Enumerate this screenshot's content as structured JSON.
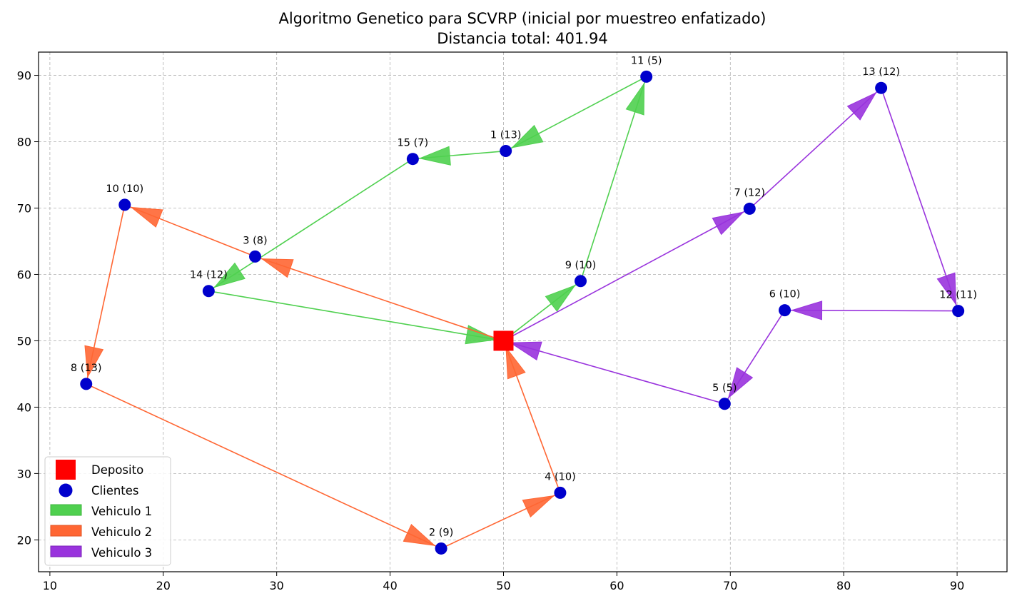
{
  "chart_data": {
    "type": "scatter",
    "title": "Algoritmo Genetico para SCVRP (inicial por muestreo enfatizado)",
    "subtitle": "Distancia total: 401.94",
    "xlabel": "",
    "ylabel": "",
    "xlim": [
      9,
      94.4
    ],
    "ylim": [
      15.2,
      93.5
    ],
    "xticks": [
      10,
      20,
      30,
      40,
      50,
      60,
      70,
      80,
      90
    ],
    "yticks": [
      20,
      30,
      40,
      50,
      60,
      70,
      80,
      90
    ],
    "grid": true,
    "legend_position": "lower-left",
    "depot": {
      "name": "Deposito",
      "x": 50,
      "y": 50,
      "color": "#ff0000"
    },
    "clients_name": "Clientes",
    "client_color": "#0000cc",
    "clients": [
      {
        "id": 1,
        "label": "1 (13)",
        "x": 50.2,
        "y": 78.6
      },
      {
        "id": 2,
        "label": "2 (9)",
        "x": 44.5,
        "y": 18.7
      },
      {
        "id": 3,
        "label": "3 (8)",
        "x": 28.1,
        "y": 62.7
      },
      {
        "id": 4,
        "label": "4 (10)",
        "x": 55.0,
        "y": 27.1
      },
      {
        "id": 5,
        "label": "5 (5)",
        "x": 69.5,
        "y": 40.5
      },
      {
        "id": 6,
        "label": "6 (10)",
        "x": 74.8,
        "y": 54.6
      },
      {
        "id": 7,
        "label": "7 (12)",
        "x": 71.7,
        "y": 69.9
      },
      {
        "id": 8,
        "label": "8 (13)",
        "x": 13.2,
        "y": 43.5
      },
      {
        "id": 9,
        "label": "9 (10)",
        "x": 56.8,
        "y": 59.0
      },
      {
        "id": 10,
        "label": "10 (10)",
        "x": 16.6,
        "y": 70.5
      },
      {
        "id": 11,
        "label": "11 (5)",
        "x": 62.6,
        "y": 89.8
      },
      {
        "id": 12,
        "label": "12 (11)",
        "x": 90.1,
        "y": 54.5
      },
      {
        "id": 13,
        "label": "13 (12)",
        "x": 83.3,
        "y": 88.1
      },
      {
        "id": 14,
        "label": "14 (12)",
        "x": 24.0,
        "y": 57.5
      },
      {
        "id": 15,
        "label": "15 (7)",
        "x": 42.0,
        "y": 77.4
      }
    ],
    "series": [
      {
        "name": "Vehiculo 1",
        "color": "#4fd04f",
        "route": [
          0,
          9,
          11,
          1,
          15,
          14,
          0
        ]
      },
      {
        "name": "Vehiculo 2",
        "color": "#ff6633",
        "route": [
          0,
          3,
          10,
          8,
          2,
          4,
          0
        ]
      },
      {
        "name": "Vehiculo 3",
        "color": "#9933dd",
        "route": [
          0,
          7,
          13,
          12,
          6,
          5,
          0
        ]
      }
    ]
  }
}
